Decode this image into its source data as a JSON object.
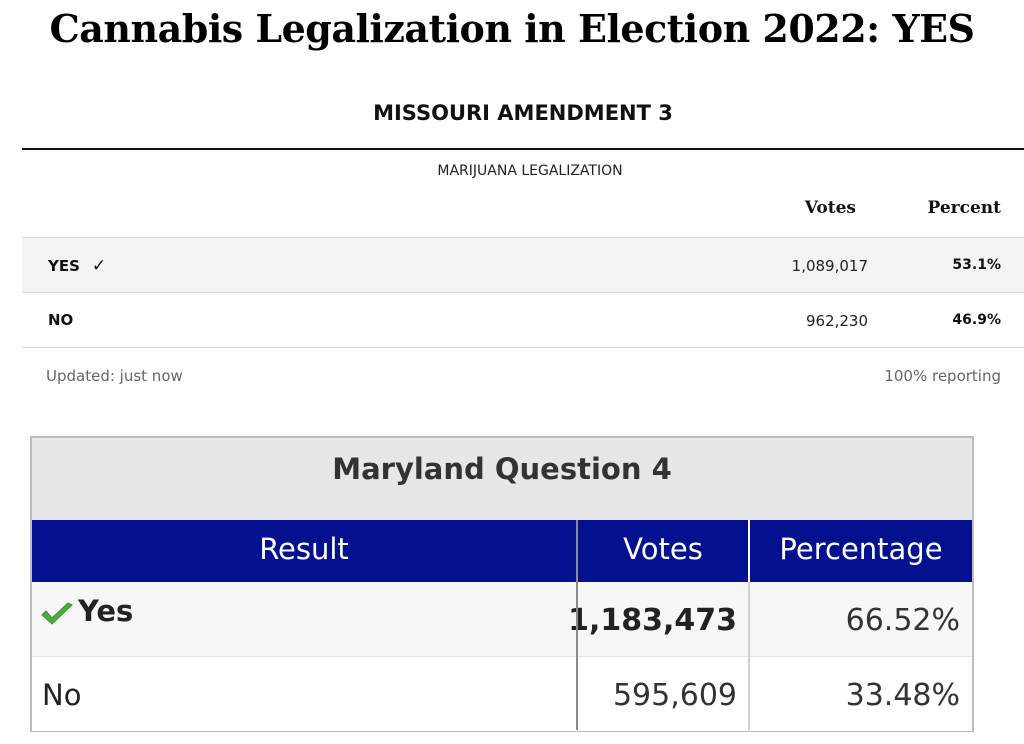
{
  "page_title": "Cannabis Legalization in Election 2022:  YES",
  "missouri": {
    "title": "MISSOURI AMENDMENT 3",
    "subtitle": "MARIJUANA LEGALIZATION",
    "columns": {
      "votes": "Votes",
      "percent": "Percent"
    },
    "rows": [
      {
        "choice": "YES",
        "check": "✓",
        "votes": "1,089,017",
        "percent": "53.1%"
      },
      {
        "choice": "NO",
        "votes": "962,230",
        "percent": "46.9%"
      }
    ],
    "updated": "Updated: just now",
    "reporting": "100% reporting"
  },
  "maryland": {
    "title": "Maryland Question 4",
    "columns": {
      "result": "Result",
      "votes": "Votes",
      "percentage": "Percentage"
    },
    "rows": [
      {
        "choice": "Yes",
        "votes": "1,183,473",
        "percentage": "66.52%"
      },
      {
        "choice": "No",
        "votes": "595,609",
        "percentage": "33.48%"
      }
    ],
    "colors": {
      "header_bg": "#03108f",
      "check_green": "#4caf3c"
    }
  }
}
